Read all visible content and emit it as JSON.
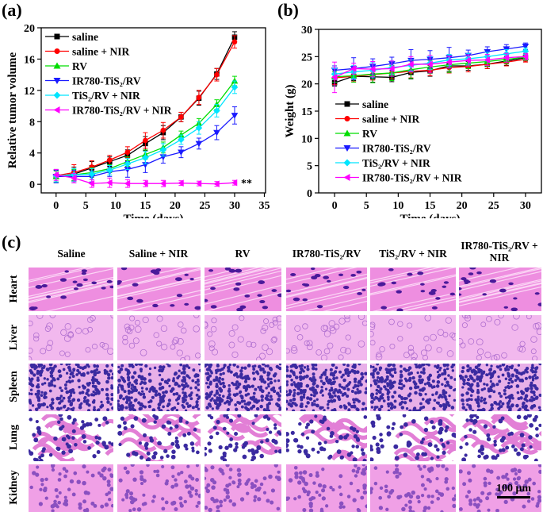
{
  "panels": {
    "a": "(a)",
    "b": "(b)",
    "c": "(c)"
  },
  "series_style": [
    {
      "color": "#000000",
      "marker": "square"
    },
    {
      "color": "#ff0000",
      "marker": "circle"
    },
    {
      "color": "#00dd00",
      "marker": "triangle-up"
    },
    {
      "color": "#1a1aff",
      "marker": "triangle-down"
    },
    {
      "color": "#00e5ff",
      "marker": "diamond"
    },
    {
      "color": "#ff00ff",
      "marker": "triangle-left"
    }
  ],
  "chart_data": [
    {
      "type": "line",
      "xlabel": "Time (days)",
      "ylabel": "Relative tumor volume",
      "xlim": [
        -2.5,
        35.2
      ],
      "ylim": [
        -1.1,
        20
      ],
      "xticks": [
        "0",
        "5",
        "10",
        "15",
        "20",
        "25",
        "30",
        "35"
      ],
      "yticks": [
        "0",
        "4",
        "8",
        "12",
        "16",
        "20"
      ],
      "legend": "top-left",
      "annotation": "**",
      "x": [
        0,
        3,
        6,
        9,
        12,
        15,
        18,
        21,
        24,
        27,
        30
      ],
      "series": [
        {
          "name": "saline",
          "values": [
            1.0,
            1.3,
            2.1,
            2.9,
            3.7,
            5.2,
            6.6,
            8.6,
            11.0,
            14.1,
            18.8
          ],
          "error": [
            0.8,
            0.9,
            0.8,
            0.6,
            0.7,
            0.9,
            0.9,
            0.6,
            0.9,
            0.7,
            0.7
          ]
        },
        {
          "name": "saline + NIR",
          "values": [
            1.1,
            1.5,
            2.2,
            3.1,
            4.1,
            5.6,
            6.9,
            8.6,
            11.1,
            14.0,
            18.2
          ],
          "error": [
            0.8,
            1.0,
            0.8,
            0.6,
            0.7,
            1.0,
            1.0,
            0.6,
            0.9,
            0.8,
            0.8
          ]
        },
        {
          "name": "RV",
          "values": [
            1.0,
            1.2,
            1.5,
            2.0,
            2.9,
            3.8,
            4.7,
            6.3,
            7.8,
            10.2,
            13.2
          ],
          "error": [
            0.7,
            0.7,
            0.6,
            0.5,
            0.6,
            0.6,
            0.7,
            0.5,
            0.6,
            0.6,
            0.6
          ]
        },
        {
          "name": "IR780-TiS₂/RV",
          "values": [
            1.0,
            1.0,
            1.0,
            1.6,
            1.9,
            2.5,
            3.5,
            4.1,
            5.2,
            6.6,
            8.8
          ],
          "error": [
            0.8,
            0.8,
            0.7,
            0.6,
            1.0,
            1.0,
            0.8,
            0.7,
            0.7,
            0.9,
            1.1
          ]
        },
        {
          "name": "TiS₂/RV + NIR",
          "values": [
            1.1,
            1.2,
            1.3,
            1.8,
            2.6,
            3.4,
            4.4,
            5.7,
            7.2,
            9.4,
            12.4
          ],
          "error": [
            0.8,
            0.8,
            0.7,
            0.6,
            0.7,
            0.8,
            0.8,
            0.6,
            0.8,
            0.8,
            0.8
          ]
        },
        {
          "name": "IR780-TiS₂/RV + NIR",
          "values": [
            1.2,
            0.8,
            0.1,
            0.2,
            0.1,
            0.1,
            0.1,
            0.15,
            0.1,
            0.05,
            0.2
          ],
          "error": [
            0.7,
            0.6,
            0.5,
            0.6,
            0.5,
            0.4,
            0.4,
            0.3,
            0.3,
            0.3,
            0.3
          ]
        }
      ]
    },
    {
      "type": "line",
      "xlabel": "Time (days)",
      "ylabel": "Weight (g)",
      "xlim": [
        -2.5,
        32.5
      ],
      "ylim": [
        0,
        30
      ],
      "xticks": [
        "0",
        "5",
        "10",
        "15",
        "20",
        "25",
        "30"
      ],
      "yticks": [
        "0",
        "5",
        "10",
        "15",
        "20",
        "25",
        "30"
      ],
      "legend": "bottom-center",
      "x": [
        0,
        3,
        6,
        9,
        12,
        15,
        18,
        21,
        24,
        27,
        30
      ],
      "series": [
        {
          "name": "saline",
          "values": [
            20.2,
            21.4,
            21.3,
            21.2,
            22.1,
            22.4,
            23.3,
            23.3,
            23.6,
            24.2,
            24.8
          ],
          "error": [
            0.6,
            0.8,
            1.0,
            0.8,
            1.2,
            1.0,
            1.0,
            0.8,
            0.8,
            0.8,
            0.6
          ]
        },
        {
          "name": "saline + NIR",
          "values": [
            21.1,
            21.4,
            21.7,
            22.0,
            22.3,
            22.5,
            23.0,
            23.2,
            23.6,
            24.0,
            24.5
          ],
          "error": [
            1.2,
            1.0,
            1.0,
            1.0,
            1.2,
            1.0,
            1.0,
            1.0,
            0.8,
            0.7,
            0.5
          ]
        },
        {
          "name": "RV",
          "values": [
            21.3,
            21.5,
            21.8,
            22.0,
            22.6,
            23.1,
            23.5,
            23.8,
            24.1,
            24.5,
            24.9
          ],
          "error": [
            1.0,
            1.2,
            1.6,
            1.4,
            1.6,
            1.2,
            1.4,
            1.0,
            0.8,
            0.8,
            0.6
          ]
        },
        {
          "name": "IR780-TiS₂/RV",
          "values": [
            22.5,
            22.8,
            23.2,
            23.7,
            24.3,
            24.5,
            24.8,
            25.2,
            25.9,
            26.4,
            26.9
          ],
          "error": [
            0.8,
            2.0,
            1.4,
            1.2,
            2.0,
            1.6,
            1.9,
            1.0,
            0.9,
            0.8,
            0.6
          ]
        },
        {
          "name": "TiS₂/RV + NIR",
          "values": [
            21.8,
            22.2,
            22.5,
            23.0,
            23.4,
            23.8,
            24.4,
            24.6,
            25.0,
            25.5,
            26.0
          ],
          "error": [
            1.0,
            1.2,
            1.4,
            1.2,
            1.0,
            1.2,
            1.0,
            1.0,
            0.8,
            0.8,
            0.6
          ]
        },
        {
          "name": "IR780-TiS₂/RV + NIR",
          "values": [
            21.2,
            22.8,
            22.7,
            22.8,
            23.6,
            23.6,
            24.0,
            24.3,
            24.4,
            24.8,
            25.0
          ],
          "error": [
            2.8,
            1.0,
            1.4,
            1.4,
            1.4,
            1.6,
            1.0,
            1.0,
            1.0,
            0.8,
            0.6
          ]
        }
      ]
    }
  ],
  "histology": {
    "columns": [
      "Saline",
      "Saline + NIR",
      "RV",
      "IR780-TiS₂/RV",
      "TiS₂/RV + NIR",
      "IR780-TiS₂/RV + NIR"
    ],
    "rows": [
      "Heart",
      "Liver",
      "Spleen",
      "Lung",
      "Kidney"
    ],
    "scale_bar": "100 μm"
  }
}
